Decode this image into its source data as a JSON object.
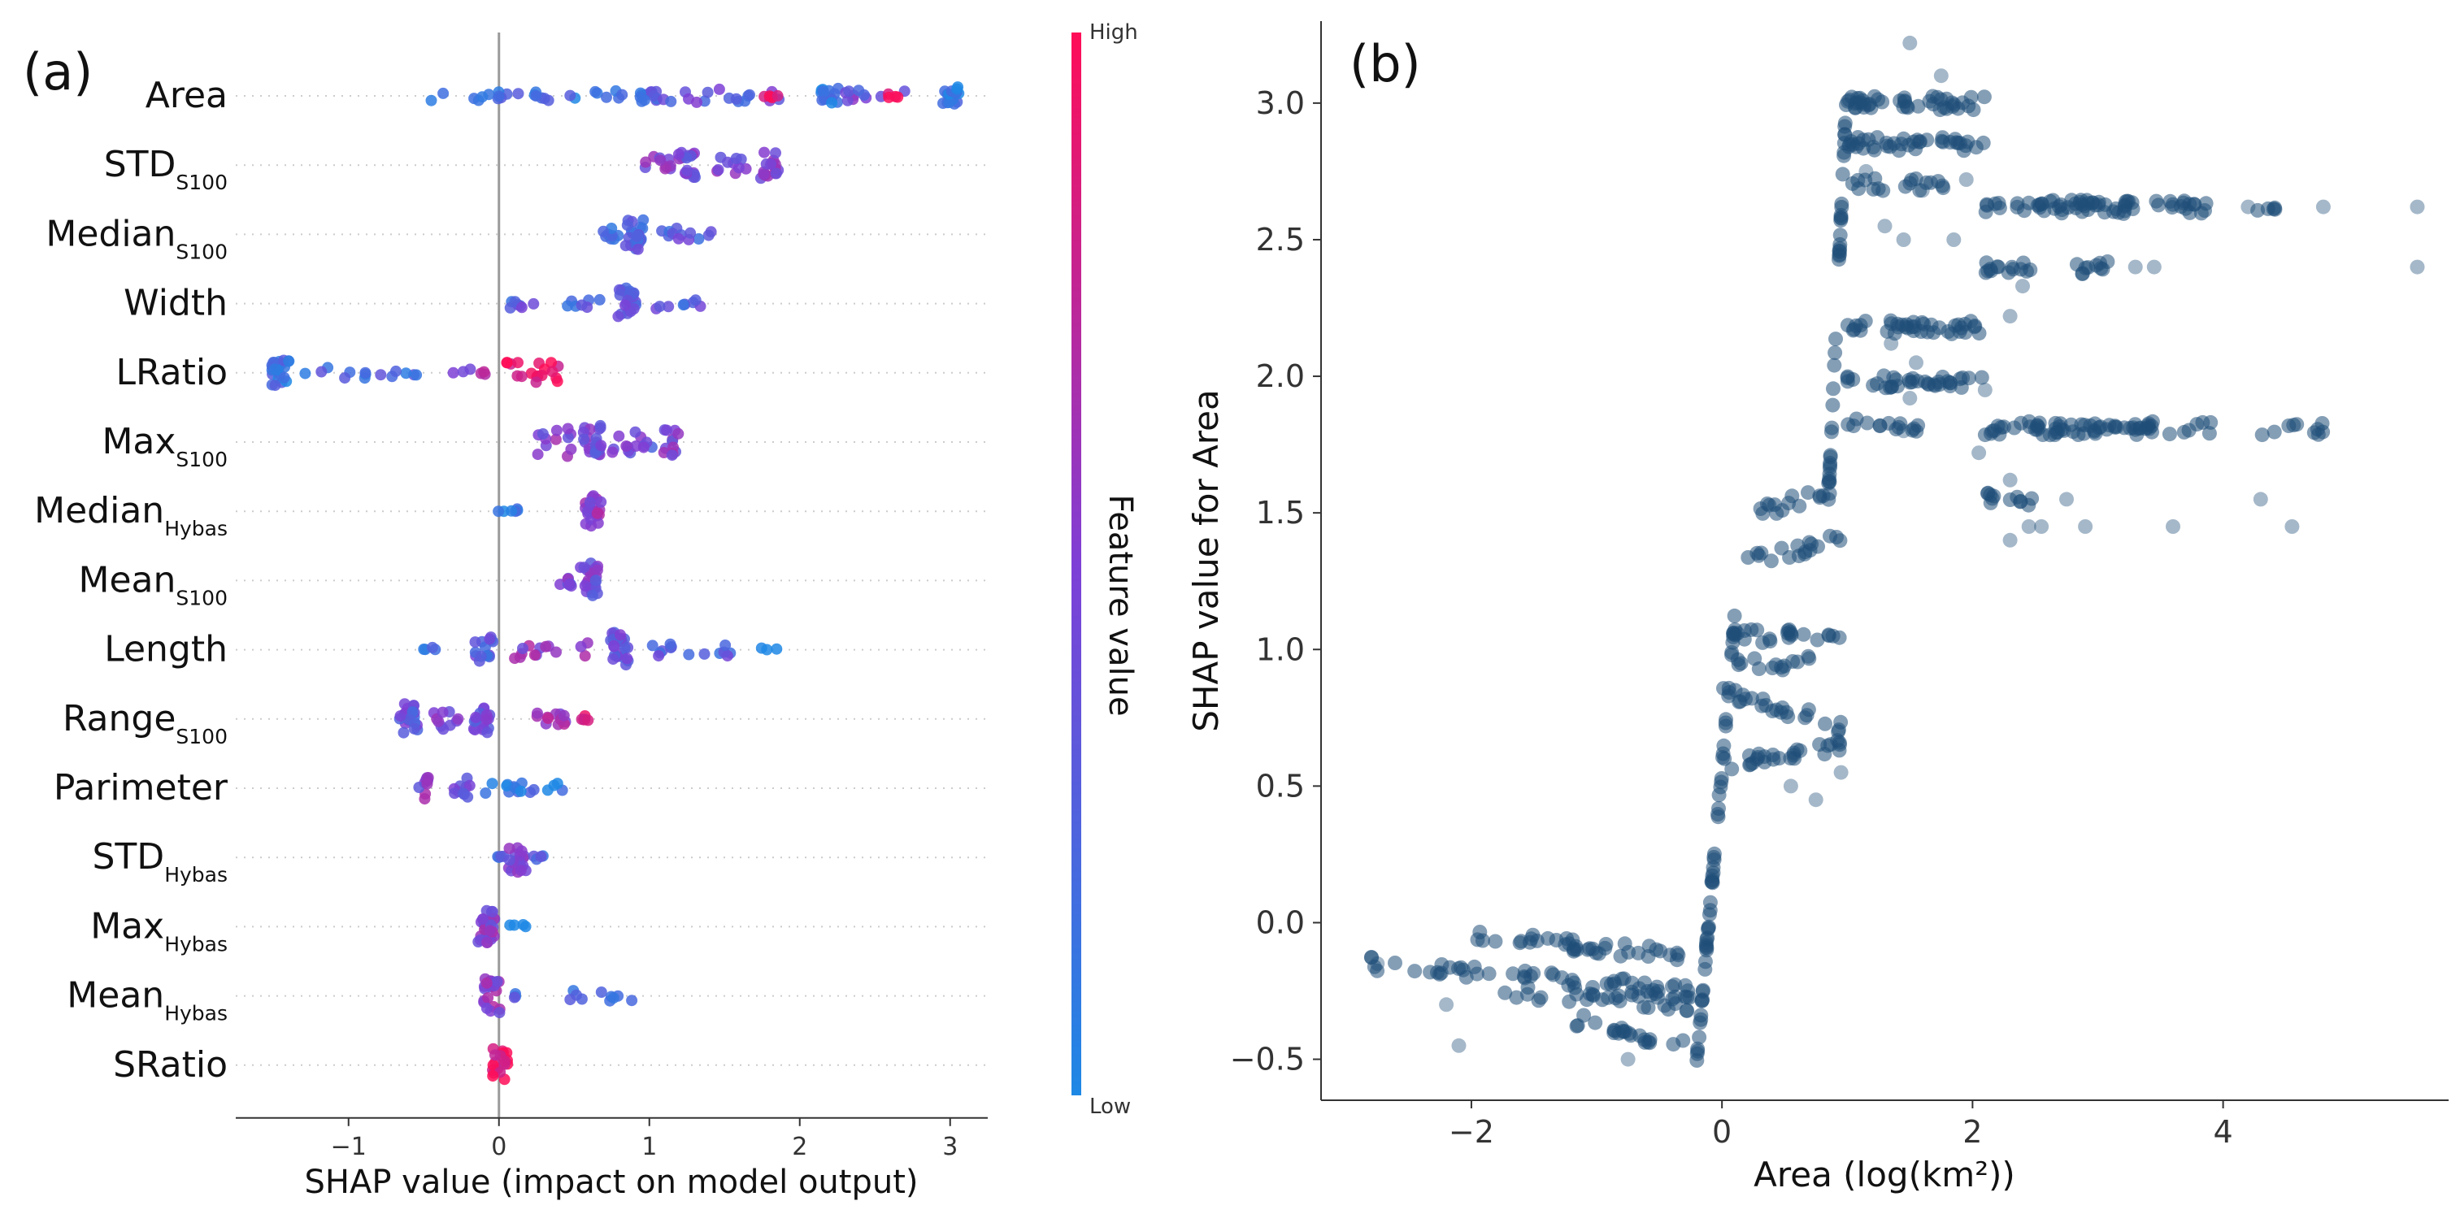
{
  "colors": {
    "shap_low": "#1e88e5",
    "shap_mid": "#7e3fd6",
    "shap_high": "#ff0d57",
    "dependence_point": "#1f4e79",
    "zero_line": "#9a9a9a",
    "row_guide": "#cccccc"
  },
  "chart_data": [
    {
      "panel_label": "(a)",
      "type": "scatter",
      "subtype": "shap_beeswarm",
      "title": "",
      "xlabel": "SHAP value (impact on model output)",
      "ylabel": "",
      "xlim": [
        -1.75,
        3.25
      ],
      "xticks": [
        -1,
        0,
        1,
        2,
        3
      ],
      "xtick_labels": [
        "−1",
        "0",
        "1",
        "2",
        "3"
      ],
      "grid": false,
      "colorbar": {
        "label": "Feature value",
        "high": "High",
        "low": "Low"
      },
      "features": [
        {
          "name": "Area",
          "sub": "",
          "shap_range": [
            -0.5,
            3.2
          ],
          "clusters": [
            {
              "x": -0.45,
              "x2": 0.9,
              "n": 26,
              "spread": 0.05,
              "mix": 0.15
            },
            {
              "x": 1.0,
              "n": 12,
              "spread": 0.05,
              "mix": 0.25
            },
            {
              "x": 1.05,
              "x2": 1.9,
              "n": 18,
              "spread": 0.06,
              "mix": 0.35
            },
            {
              "x": 1.8,
              "n": 4,
              "spread": 0.02,
              "mix": 0.95
            },
            {
              "x": 2.2,
              "n": 14,
              "spread": 0.07,
              "mix": 0.1
            },
            {
              "x": 2.25,
              "x2": 2.7,
              "n": 10,
              "spread": 0.05,
              "mix": 0.4
            },
            {
              "x": 2.6,
              "n": 4,
              "spread": 0.02,
              "mix": 0.95
            },
            {
              "x": 3.0,
              "n": 18,
              "spread": 0.08,
              "mix": 0.08
            }
          ]
        },
        {
          "name": "STD",
          "sub": "S100",
          "shap_range": [
            0.85,
            1.9
          ],
          "clusters": [
            {
              "x": 0.95,
              "x2": 1.15,
              "n": 10,
              "spread": 0.08,
              "mix": 0.55
            },
            {
              "x": 1.25,
              "n": 18,
              "spread": 0.12,
              "mix": 0.45
            },
            {
              "x": 1.45,
              "x2": 1.65,
              "n": 10,
              "spread": 0.08,
              "mix": 0.5
            },
            {
              "x": 1.8,
              "n": 18,
              "spread": 0.12,
              "mix": 0.5
            }
          ]
        },
        {
          "name": "Median",
          "sub": "S100",
          "shap_range": [
            0.6,
            1.65
          ],
          "clusters": [
            {
              "x": 0.68,
              "x2": 0.8,
              "n": 8,
              "spread": 0.08,
              "mix": 0.2
            },
            {
              "x": 0.9,
              "n": 24,
              "spread": 0.14,
              "mix": 0.3
            },
            {
              "x": 1.0,
              "x2": 1.42,
              "n": 12,
              "spread": 0.06,
              "mix": 0.3
            }
          ]
        },
        {
          "name": "Width",
          "sub": "",
          "shap_range": [
            0.0,
            1.4
          ],
          "clusters": [
            {
              "x": 0.05,
              "x2": 0.7,
              "n": 14,
              "spread": 0.04,
              "mix": 0.3
            },
            {
              "x": 0.85,
              "n": 22,
              "spread": 0.14,
              "mix": 0.35
            },
            {
              "x": 0.95,
              "x2": 1.35,
              "n": 8,
              "spread": 0.05,
              "mix": 0.3
            }
          ]
        },
        {
          "name": "LRatio",
          "sub": "",
          "shap_range": [
            -1.7,
            0.5
          ],
          "clusters": [
            {
              "x": -1.45,
              "n": 22,
              "spread": 0.12,
              "mix": 0.15
            },
            {
              "x": -1.3,
              "x2": -0.5,
              "n": 14,
              "spread": 0.05,
              "mix": 0.25
            },
            {
              "x": -0.35,
              "x2": -0.05,
              "n": 6,
              "spread": 0.04,
              "mix": 0.6
            },
            {
              "x": 0.05,
              "x2": 0.4,
              "n": 18,
              "spread": 0.1,
              "mix": 0.95
            }
          ]
        },
        {
          "name": "Max",
          "sub": "S100",
          "shap_range": [
            0.2,
            1.3
          ],
          "clusters": [
            {
              "x": 0.25,
              "x2": 0.5,
              "n": 12,
              "spread": 0.14,
              "mix": 0.5
            },
            {
              "x": 0.62,
              "n": 22,
              "spread": 0.16,
              "mix": 0.45
            },
            {
              "x": 0.75,
              "x2": 1.05,
              "n": 14,
              "spread": 0.1,
              "mix": 0.4
            },
            {
              "x": 1.15,
              "n": 12,
              "spread": 0.12,
              "mix": 0.5
            }
          ]
        },
        {
          "name": "Median",
          "sub": "Hybas",
          "shap_range": [
            -0.1,
            0.75
          ],
          "clusters": [
            {
              "x": -0.05,
              "x2": 0.15,
              "n": 6,
              "spread": 0.03,
              "mix": 0.05
            },
            {
              "x": 0.62,
              "n": 22,
              "spread": 0.14,
              "mix": 0.55
            }
          ]
        },
        {
          "name": "Mean",
          "sub": "S100",
          "shap_range": [
            0.35,
            0.65
          ],
          "clusters": [
            {
              "x": 0.4,
              "x2": 0.5,
              "n": 8,
              "spread": 0.05,
              "mix": 0.45
            },
            {
              "x": 0.6,
              "n": 24,
              "spread": 0.16,
              "mix": 0.45
            }
          ]
        },
        {
          "name": "Length",
          "sub": "",
          "shap_range": [
            -0.5,
            1.85
          ],
          "clusters": [
            {
              "x": -0.5,
              "x2": -0.25,
              "n": 4,
              "spread": 0.02,
              "mix": 0.1
            },
            {
              "x": -0.1,
              "n": 14,
              "spread": 0.12,
              "mix": 0.3
            },
            {
              "x": 0.1,
              "x2": 0.6,
              "n": 14,
              "spread": 0.08,
              "mix": 0.55
            },
            {
              "x": 0.8,
              "n": 24,
              "spread": 0.16,
              "mix": 0.4
            },
            {
              "x": 0.95,
              "x2": 1.6,
              "n": 14,
              "spread": 0.06,
              "mix": 0.3
            },
            {
              "x": 1.65,
              "x2": 1.85,
              "n": 3,
              "spread": 0.02,
              "mix": 0.1
            }
          ]
        },
        {
          "name": "Range",
          "sub": "S100",
          "shap_range": [
            -0.7,
            0.75
          ],
          "clusters": [
            {
              "x": -0.6,
              "n": 20,
              "spread": 0.14,
              "mix": 0.35
            },
            {
              "x": -0.45,
              "x2": -0.25,
              "n": 10,
              "spread": 0.1,
              "mix": 0.45
            },
            {
              "x": -0.12,
              "n": 18,
              "spread": 0.14,
              "mix": 0.4
            },
            {
              "x": 0.05,
              "x2": 0.45,
              "n": 12,
              "spread": 0.06,
              "mix": 0.6
            },
            {
              "x": 0.55,
              "x2": 0.75,
              "n": 5,
              "spread": 0.03,
              "mix": 0.8
            }
          ]
        },
        {
          "name": "Parimeter",
          "sub": "",
          "shap_range": [
            -0.55,
            0.5
          ],
          "clusters": [
            {
              "x": -0.52,
              "n": 10,
              "spread": 0.1,
              "mix": 0.5
            },
            {
              "x": -0.25,
              "n": 10,
              "spread": 0.1,
              "mix": 0.45
            },
            {
              "x": -0.15,
              "x2": 0.48,
              "n": 16,
              "spread": 0.05,
              "mix": 0.1
            }
          ]
        },
        {
          "name": "STD",
          "sub": "Hybas",
          "shap_range": [
            -0.05,
            0.3
          ],
          "clusters": [
            {
              "x": -0.03,
              "x2": 0.05,
              "n": 4,
              "spread": 0.02,
              "mix": 0.2
            },
            {
              "x": 0.12,
              "n": 20,
              "spread": 0.14,
              "mix": 0.45
            },
            {
              "x": 0.22,
              "x2": 0.3,
              "n": 4,
              "spread": 0.02,
              "mix": 0.3
            }
          ]
        },
        {
          "name": "Max",
          "sub": "Hybas",
          "shap_range": [
            -0.15,
            0.2
          ],
          "clusters": [
            {
              "x": -0.08,
              "n": 26,
              "spread": 0.16,
              "mix": 0.5
            },
            {
              "x": 0.05,
              "x2": 0.2,
              "n": 4,
              "spread": 0.02,
              "mix": 0.1
            }
          ]
        },
        {
          "name": "Mean",
          "sub": "Hybas",
          "shap_range": [
            -0.1,
            0.95
          ],
          "clusters": [
            {
              "x": -0.05,
              "n": 22,
              "spread": 0.16,
              "mix": 0.55
            },
            {
              "x": 0.08,
              "x2": 0.12,
              "n": 3,
              "spread": 0.02,
              "mix": 0.2
            },
            {
              "x": 0.45,
              "x2": 0.95,
              "n": 10,
              "spread": 0.05,
              "mix": 0.15
            }
          ]
        },
        {
          "name": "SRatio",
          "sub": "",
          "shap_range": [
            -0.02,
            0.05
          ],
          "clusters": [
            {
              "x": 0.0,
              "n": 18,
              "spread": 0.16,
              "mix": 0.92
            }
          ]
        }
      ]
    },
    {
      "panel_label": "(b)",
      "type": "scatter",
      "subtype": "shap_dependence",
      "title": "",
      "xlabel": "Area (log(km²))",
      "ylabel": "SHAP value for Area",
      "xlim": [
        -3.2,
        5.8
      ],
      "ylim": [
        -0.65,
        3.3
      ],
      "xticks": [
        -2,
        0,
        2,
        4
      ],
      "xtick_labels": [
        "−2",
        "0",
        "2",
        "4"
      ],
      "yticks": [
        -0.5,
        0.0,
        0.5,
        1.0,
        1.5,
        2.0,
        2.5,
        3.0
      ],
      "ytick_labels": [
        "−0.5",
        "0.0",
        "0.5",
        "1.0",
        "1.5",
        "2.0",
        "2.5",
        "3.0"
      ],
      "grid": false,
      "bands": [
        {
          "x0": -2.8,
          "x1": -0.25,
          "y0": -0.15,
          "y1": -0.25,
          "n": 55
        },
        {
          "x0": -2.0,
          "x1": -0.25,
          "y0": -0.05,
          "y1": -0.12,
          "n": 40
        },
        {
          "x0": -1.8,
          "x1": -0.25,
          "y0": -0.25,
          "y1": -0.3,
          "n": 30
        },
        {
          "x0": -1.2,
          "x1": -0.3,
          "y0": -0.35,
          "y1": -0.45,
          "n": 22
        },
        {
          "x0": -0.2,
          "x1": 0.1,
          "y0": -0.5,
          "y1": 1.1,
          "n": 60
        },
        {
          "x0": 0.0,
          "x1": 0.95,
          "y0": 0.58,
          "y1": 0.65,
          "n": 28
        },
        {
          "x0": 0.0,
          "x1": 0.95,
          "y0": 0.85,
          "y1": 0.72,
          "n": 24
        },
        {
          "x0": 0.0,
          "x1": 0.95,
          "y0": 1.05,
          "y1": 1.05,
          "n": 24
        },
        {
          "x0": 0.0,
          "x1": 0.7,
          "y0": 0.95,
          "y1": 0.95,
          "n": 14
        },
        {
          "x0": 0.2,
          "x1": 0.95,
          "y0": 1.32,
          "y1": 1.4,
          "n": 18
        },
        {
          "x0": 0.3,
          "x1": 0.95,
          "y0": 1.5,
          "y1": 1.6,
          "n": 16
        },
        {
          "x0": 0.85,
          "x1": 1.0,
          "y0": 1.55,
          "y1": 3.1,
          "n": 40
        },
        {
          "x0": 1.0,
          "x1": 2.1,
          "y0": 3.0,
          "y1": 3.0,
          "n": 45
        },
        {
          "x0": 1.0,
          "x1": 2.1,
          "y0": 2.85,
          "y1": 2.85,
          "n": 40
        },
        {
          "x0": 1.0,
          "x1": 2.1,
          "y0": 2.18,
          "y1": 2.18,
          "n": 40
        },
        {
          "x0": 1.0,
          "x1": 2.1,
          "y0": 1.98,
          "y1": 1.98,
          "n": 36
        },
        {
          "x0": 1.0,
          "x1": 1.8,
          "y0": 2.7,
          "y1": 2.7,
          "n": 18
        },
        {
          "x0": 1.0,
          "x1": 1.6,
          "y0": 1.82,
          "y1": 1.82,
          "n": 14
        },
        {
          "x0": 2.1,
          "x1": 3.9,
          "y0": 2.62,
          "y1": 2.62,
          "n": 70
        },
        {
          "x0": 2.1,
          "x1": 3.9,
          "y0": 1.81,
          "y1": 1.81,
          "n": 70
        },
        {
          "x0": 2.1,
          "x1": 2.6,
          "y0": 2.4,
          "y1": 2.4,
          "n": 14
        },
        {
          "x0": 2.1,
          "x1": 2.5,
          "y0": 1.55,
          "y1": 1.55,
          "n": 12
        },
        {
          "x0": 2.75,
          "x1": 3.1,
          "y0": 2.4,
          "y1": 2.4,
          "n": 10
        },
        {
          "x0": 4.25,
          "x1": 4.9,
          "y0": 1.81,
          "y1": 1.81,
          "n": 10
        },
        {
          "x0": 4.25,
          "x1": 4.45,
          "y0": 2.62,
          "y1": 2.62,
          "n": 5
        }
      ],
      "sparse_points": [
        [
          1.5,
          3.22
        ],
        [
          1.75,
          3.1
        ],
        [
          1.15,
          2.75
        ],
        [
          1.6,
          2.68
        ],
        [
          1.95,
          2.72
        ],
        [
          1.3,
          2.55
        ],
        [
          1.45,
          2.5
        ],
        [
          1.85,
          2.5
        ],
        [
          1.35,
          2.12
        ],
        [
          2.3,
          2.22
        ],
        [
          1.5,
          1.92
        ],
        [
          2.1,
          1.95
        ],
        [
          2.05,
          1.72
        ],
        [
          2.3,
          1.62
        ],
        [
          2.75,
          1.55
        ],
        [
          2.45,
          1.45
        ],
        [
          2.3,
          1.4
        ],
        [
          2.55,
          1.45
        ],
        [
          2.9,
          1.45
        ],
        [
          3.6,
          1.45
        ],
        [
          4.55,
          1.45
        ],
        [
          3.45,
          2.4
        ],
        [
          3.3,
          2.4
        ],
        [
          4.3,
          1.55
        ],
        [
          2.4,
          2.33
        ],
        [
          4.8,
          2.62
        ],
        [
          5.55,
          2.62
        ],
        [
          5.55,
          2.4
        ],
        [
          4.2,
          2.62
        ],
        [
          -2.75,
          -0.15
        ],
        [
          -2.1,
          -0.45
        ],
        [
          -0.75,
          -0.5
        ],
        [
          -2.2,
          -0.3
        ],
        [
          0.95,
          0.55
        ],
        [
          0.75,
          0.45
        ],
        [
          0.55,
          0.5
        ],
        [
          1.45,
          1.8
        ],
        [
          1.55,
          2.05
        ]
      ]
    }
  ]
}
